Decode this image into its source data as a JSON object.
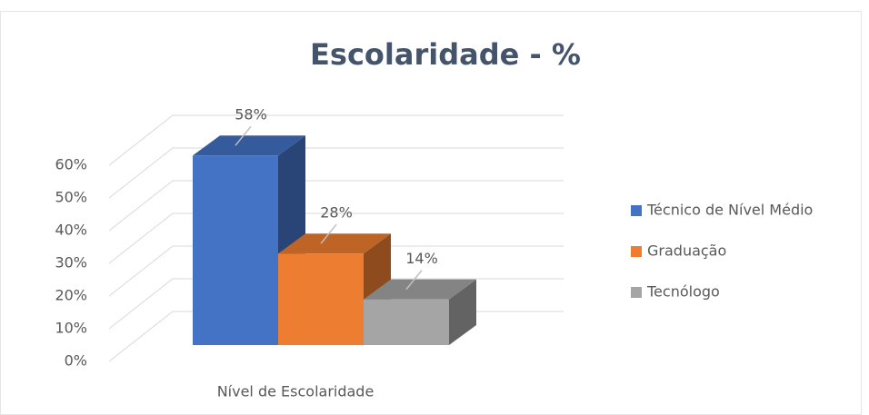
{
  "chart_data": {
    "type": "bar3d",
    "title": "Escolaridade - %",
    "categories": [
      "Nível de Escolaridade"
    ],
    "series": [
      {
        "name": "Técnico de Nível Médio",
        "color": "#4472c4",
        "values": [
          58
        ],
        "value_labels": [
          "58%"
        ]
      },
      {
        "name": "Graduação",
        "color": "#ed7d31",
        "values": [
          28
        ],
        "value_labels": [
          "28%"
        ]
      },
      {
        "name": "Tecnólogo",
        "color": "#a5a5a5",
        "values": [
          14
        ],
        "value_labels": [
          "14%"
        ]
      }
    ],
    "ylim": [
      0,
      60
    ],
    "yticks": [
      {
        "value": 0,
        "label": "0%"
      },
      {
        "value": 10,
        "label": "10%"
      },
      {
        "value": 20,
        "label": "20%"
      },
      {
        "value": 30,
        "label": "30%"
      },
      {
        "value": 40,
        "label": "40%"
      },
      {
        "value": 50,
        "label": "50%"
      },
      {
        "value": 60,
        "label": "60%"
      }
    ],
    "grid": true,
    "legend": "right"
  }
}
